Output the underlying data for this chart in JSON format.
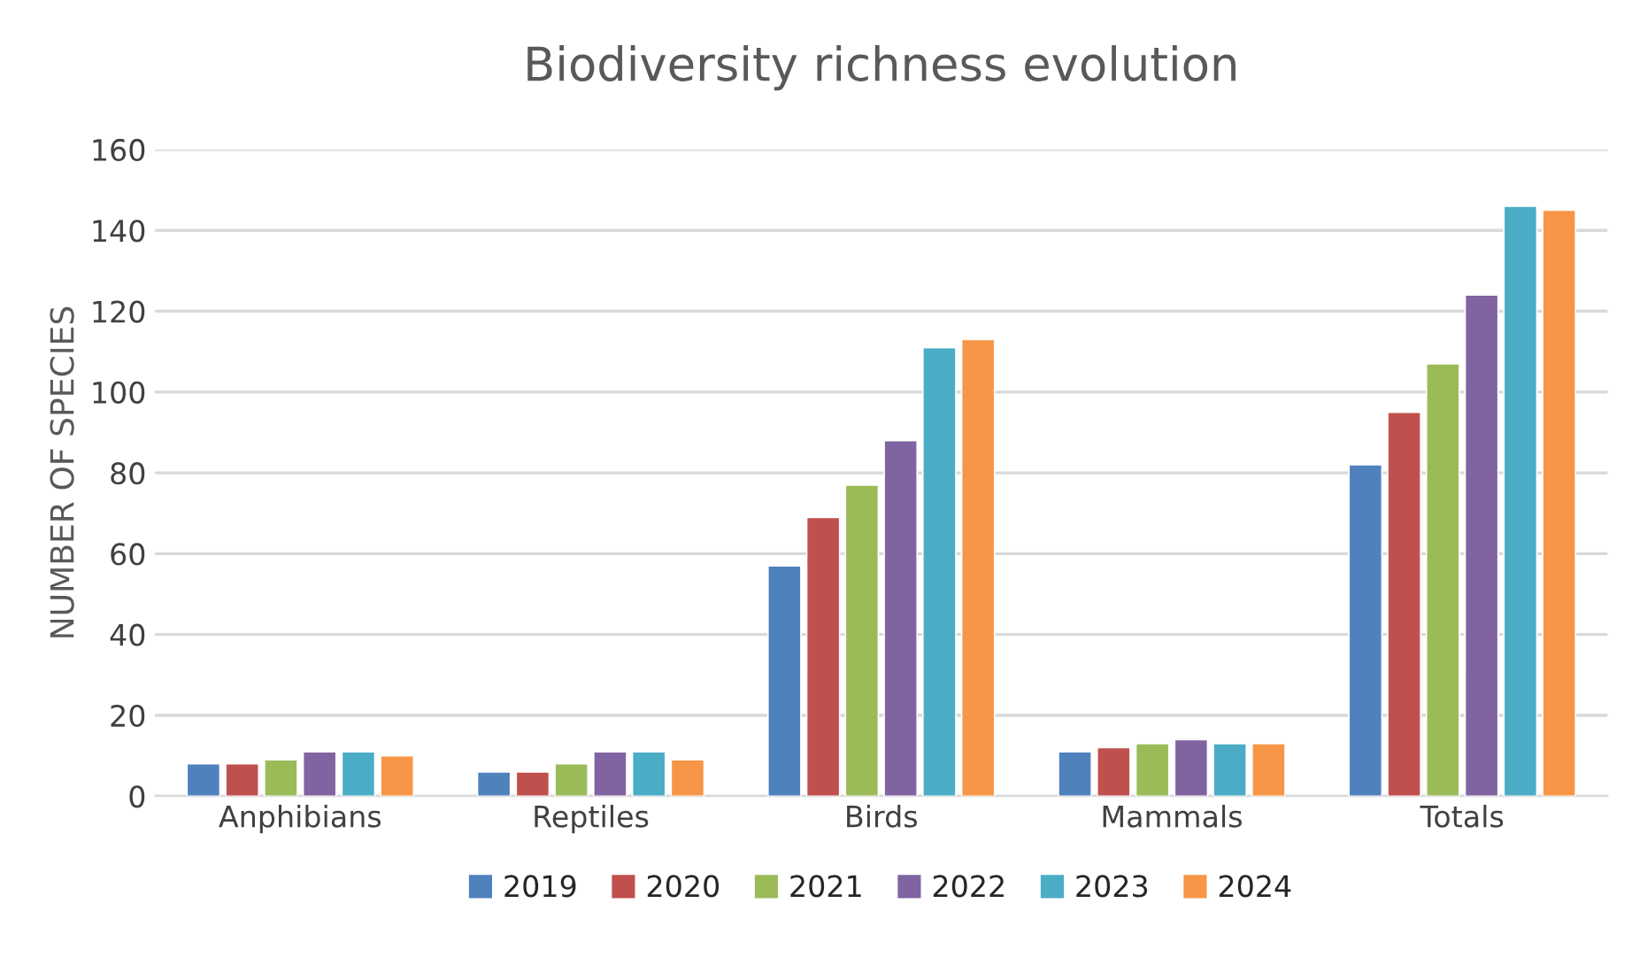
{
  "chart_data": {
    "type": "bar",
    "title": "Biodiversity richness evolution",
    "ylabel": "NUMBER OF SPECIES",
    "categories": [
      "Anphibians",
      "Reptiles",
      "Birds",
      "Mammals",
      "Totals"
    ],
    "series": [
      {
        "name": "2019",
        "color": "#4f81bd",
        "values": [
          8,
          6,
          57,
          11,
          82
        ]
      },
      {
        "name": "2020",
        "color": "#c0504d",
        "values": [
          8,
          6,
          69,
          12,
          95
        ]
      },
      {
        "name": "2021",
        "color": "#9bbb59",
        "values": [
          9,
          8,
          77,
          13,
          107
        ]
      },
      {
        "name": "2022",
        "color": "#8064a2",
        "values": [
          11,
          11,
          88,
          14,
          124
        ]
      },
      {
        "name": "2023",
        "color": "#4bacc6",
        "values": [
          11,
          11,
          111,
          13,
          146
        ]
      },
      {
        "name": "2024",
        "color": "#f79646",
        "values": [
          10,
          9,
          113,
          13,
          145
        ]
      }
    ],
    "ylim": [
      0,
      160
    ],
    "yticks": [
      0,
      20,
      40,
      60,
      80,
      100,
      120,
      140,
      160
    ],
    "grid": "y",
    "legend": "bottom"
  }
}
